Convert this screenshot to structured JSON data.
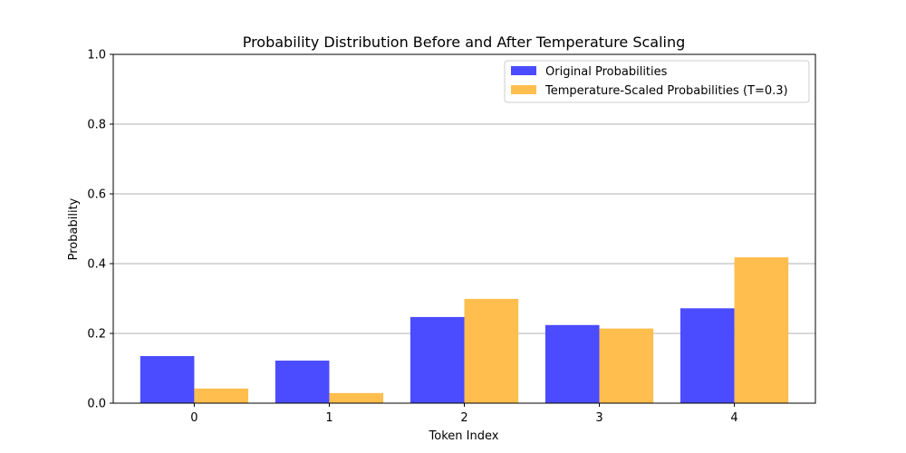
{
  "chart_data": {
    "type": "bar",
    "title": "Probability Distribution Before and After Temperature Scaling",
    "xlabel": "Token Index",
    "ylabel": "Probability",
    "categories": [
      "0",
      "1",
      "2",
      "3",
      "4"
    ],
    "series": [
      {
        "name": "Original Probabilities",
        "color": "#4b4bff",
        "values": [
          0.135,
          0.122,
          0.247,
          0.224,
          0.272
        ]
      },
      {
        "name": "Temperature-Scaled Probabilities (T=0.3)",
        "color": "#ffbe4d",
        "values": [
          0.042,
          0.029,
          0.299,
          0.214,
          0.418
        ]
      }
    ],
    "ylim": [
      0,
      1.0
    ],
    "yticks": [
      "0.0",
      "0.2",
      "0.4",
      "0.6",
      "0.8",
      "1.0"
    ],
    "grid": "horizontal",
    "legend_position": "top-right"
  }
}
